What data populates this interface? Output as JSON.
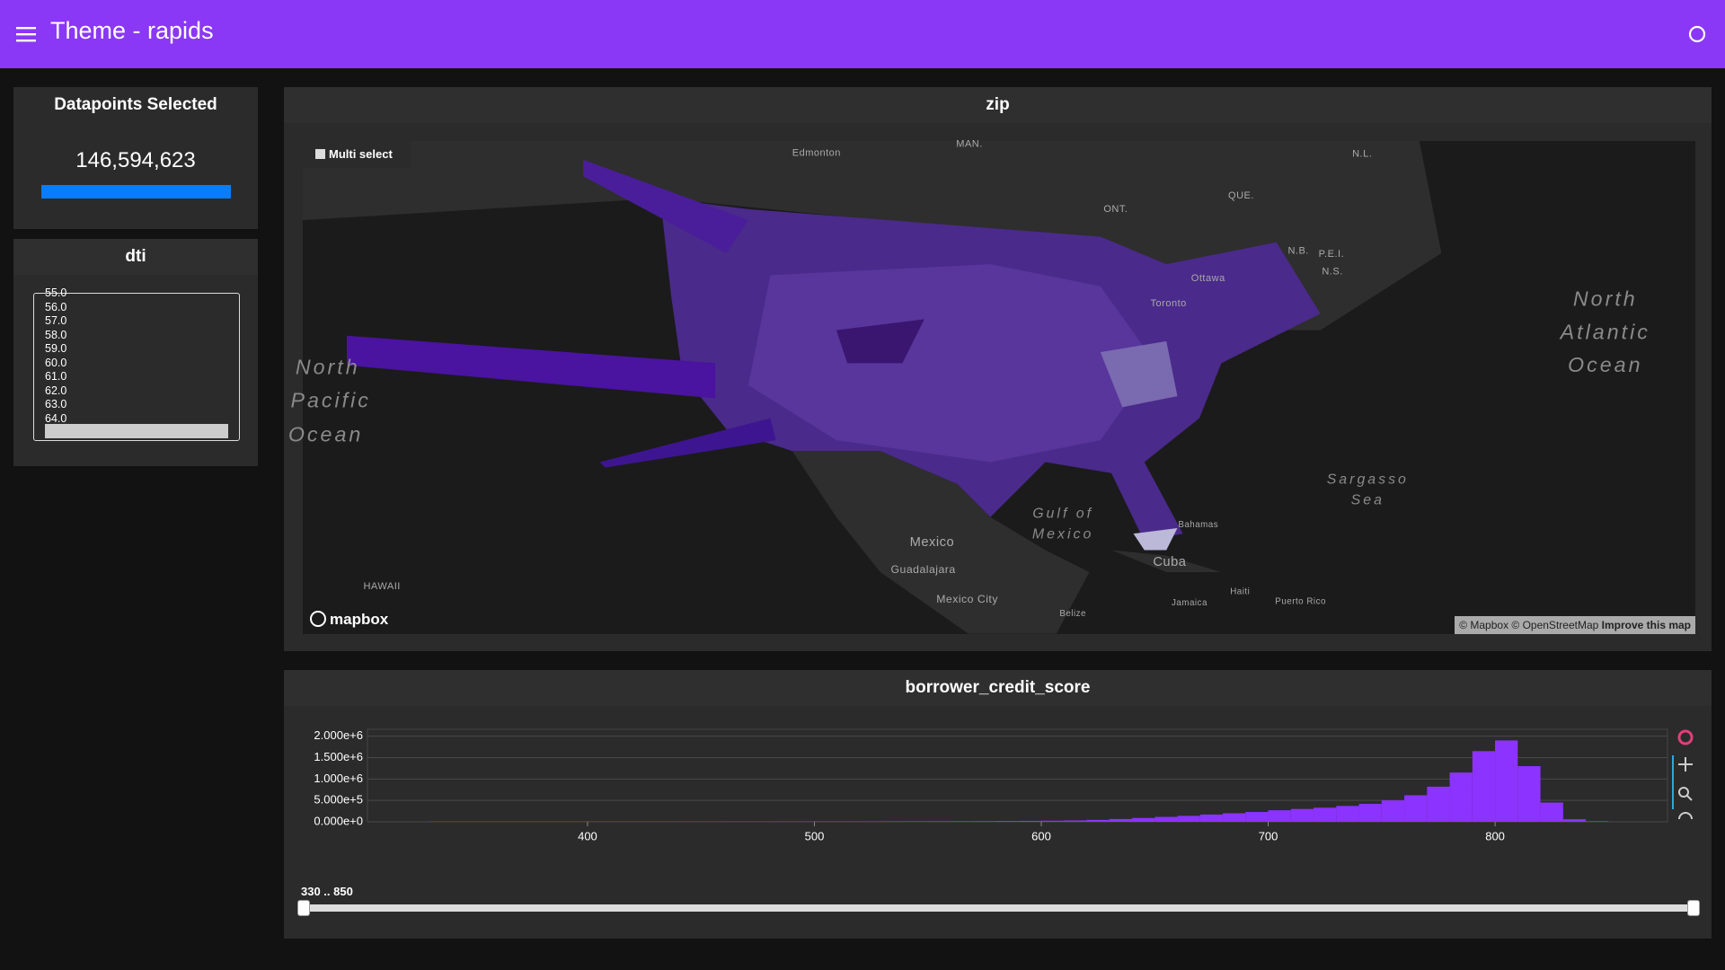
{
  "header": {
    "title": "Theme - rapids"
  },
  "datapoints": {
    "title": "Datapoints Selected",
    "value": "146,594,623"
  },
  "dti": {
    "title": "dti",
    "options": [
      "55.0",
      "56.0",
      "57.0",
      "58.0",
      "59.0",
      "60.0",
      "61.0",
      "62.0",
      "63.0",
      "64.0"
    ]
  },
  "map": {
    "title": "zip",
    "multi_select": "Multi select",
    "logo": "mapbox",
    "attribution": "© Mapbox © OpenStreetMap",
    "improve": "Improve this map",
    "labels": [
      "Edmonton",
      "MAN.",
      "ONT.",
      "QUE.",
      "N.L.",
      "N.B.",
      "P.E.I.",
      "N.S.",
      "Ottawa",
      "Toronto",
      "North",
      "Atlantic",
      "Ocean",
      "North",
      "Pacific",
      "Ocean",
      "Gulf of",
      "Mexico",
      "Mexico",
      "Guadalajara",
      "Mexico City",
      "Cuba",
      "Sargasso",
      "Sea",
      "HAWAII",
      "Jamaica",
      "Haiti",
      "Puerto Rico",
      "Belize",
      "Bahamas"
    ]
  },
  "chart_data": {
    "type": "histogram",
    "title": "borrower_credit_score",
    "color": "#8c33ff",
    "bins": [
      330,
      340,
      350,
      360,
      370,
      380,
      390,
      400,
      410,
      420,
      430,
      440,
      450,
      460,
      470,
      480,
      490,
      500,
      510,
      520,
      530,
      540,
      550,
      560,
      570,
      580,
      590,
      600,
      610,
      620,
      630,
      640,
      650,
      660,
      670,
      680,
      690,
      700,
      710,
      720,
      730,
      740,
      750,
      760,
      770,
      780,
      790,
      800,
      810,
      820,
      830,
      840,
      850
    ],
    "values": [
      5000,
      5000,
      5000,
      5000,
      5000,
      5000,
      5000,
      6000,
      6000,
      6000,
      6000,
      7000,
      7000,
      8000,
      8000,
      9000,
      9000,
      10000,
      10000,
      11000,
      12000,
      13000,
      14000,
      15000,
      17000,
      19000,
      22000,
      26000,
      32000,
      45000,
      65000,
      90000,
      115000,
      140000,
      170000,
      200000,
      230000,
      270000,
      300000,
      330000,
      370000,
      420000,
      500000,
      620000,
      820000,
      1150000,
      1650000,
      1900000,
      1300000,
      450000,
      60000,
      15000
    ],
    "xlim": [
      303,
      876
    ],
    "ylim": [
      0,
      2160000
    ],
    "xticks": [
      400,
      500,
      600,
      700,
      800
    ],
    "yticks": [
      {
        "value": 0,
        "label": "0.000e+0"
      },
      {
        "value": 500000,
        "label": "5.000e+5"
      },
      {
        "value": 1000000,
        "label": "1.000e+6"
      },
      {
        "value": 1500000,
        "label": "1.500e+6"
      },
      {
        "value": 2000000,
        "label": "2.000e+6"
      }
    ],
    "grid": true
  },
  "slider": {
    "label": "330 .. 850"
  }
}
